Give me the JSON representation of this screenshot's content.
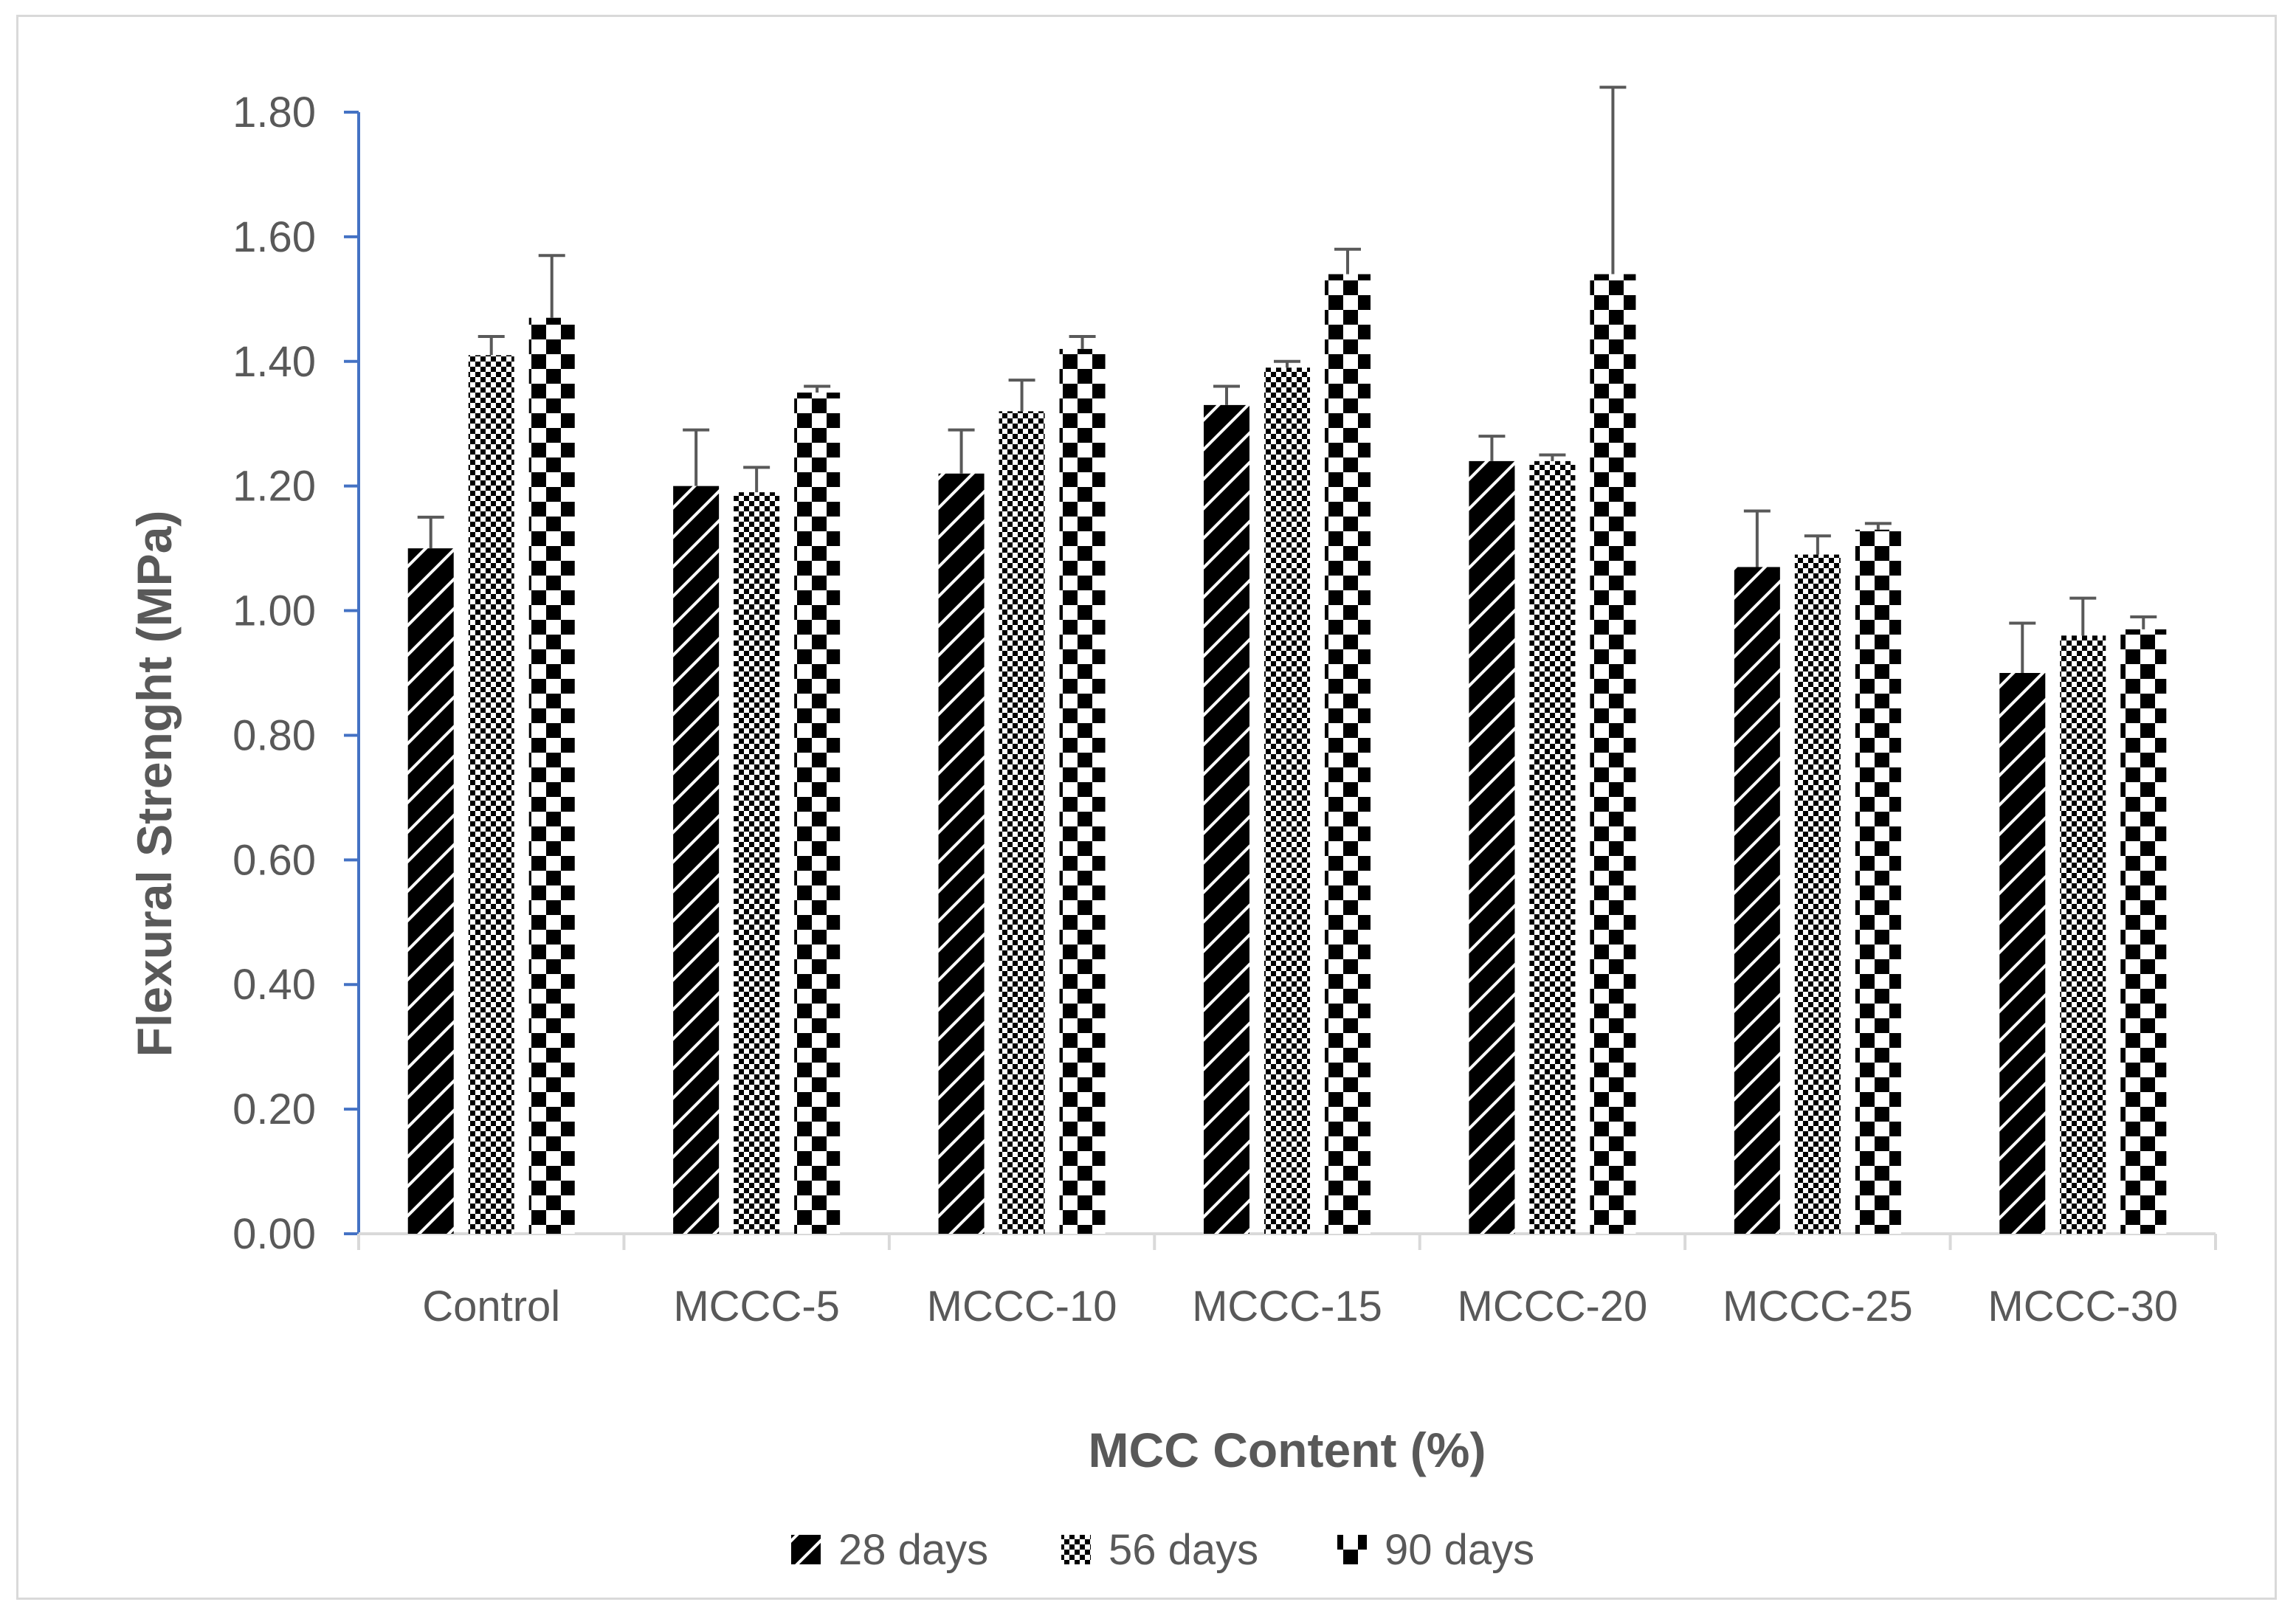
{
  "chart_data": {
    "type": "bar",
    "xlabel": "MCC Content (%)",
    "ylabel": "Flexural Strenght (MPa)",
    "ylim": [
      0,
      1.8
    ],
    "yticks": [
      "0.00",
      "0.20",
      "0.40",
      "0.60",
      "0.80",
      "1.00",
      "1.20",
      "1.40",
      "1.60",
      "1.80"
    ],
    "categories": [
      "Control",
      "MCCC-5",
      "MCCC-10",
      "MCCC-15",
      "MCCC-20",
      "MCCC-25",
      "MCCC-30"
    ],
    "series": [
      {
        "name": "28 days",
        "pattern": "diagonal-hatch",
        "color": "#000000",
        "values": [
          1.1,
          1.2,
          1.22,
          1.33,
          1.24,
          1.07,
          0.9
        ],
        "error": [
          0.05,
          0.09,
          0.07,
          0.03,
          0.04,
          0.09,
          0.08
        ]
      },
      {
        "name": "56 days",
        "pattern": "checkerboard",
        "color": "#000000",
        "values": [
          1.41,
          1.19,
          1.32,
          1.39,
          1.24,
          1.09,
          0.96
        ],
        "error": [
          0.03,
          0.04,
          0.05,
          0.01,
          0.01,
          0.03,
          0.06
        ]
      },
      {
        "name": "90 days",
        "pattern": "large-checker",
        "color": "#000000",
        "values": [
          1.47,
          1.35,
          1.42,
          1.54,
          1.54,
          1.13,
          0.97
        ],
        "error": [
          0.1,
          0.01,
          0.02,
          0.04,
          0.3,
          0.01,
          0.02
        ]
      }
    ],
    "grid": false,
    "legend_position": "bottom",
    "axis_color": "#4472c4",
    "category_axis_color": "#d9d9d9",
    "error_bar_color": "#595959"
  }
}
